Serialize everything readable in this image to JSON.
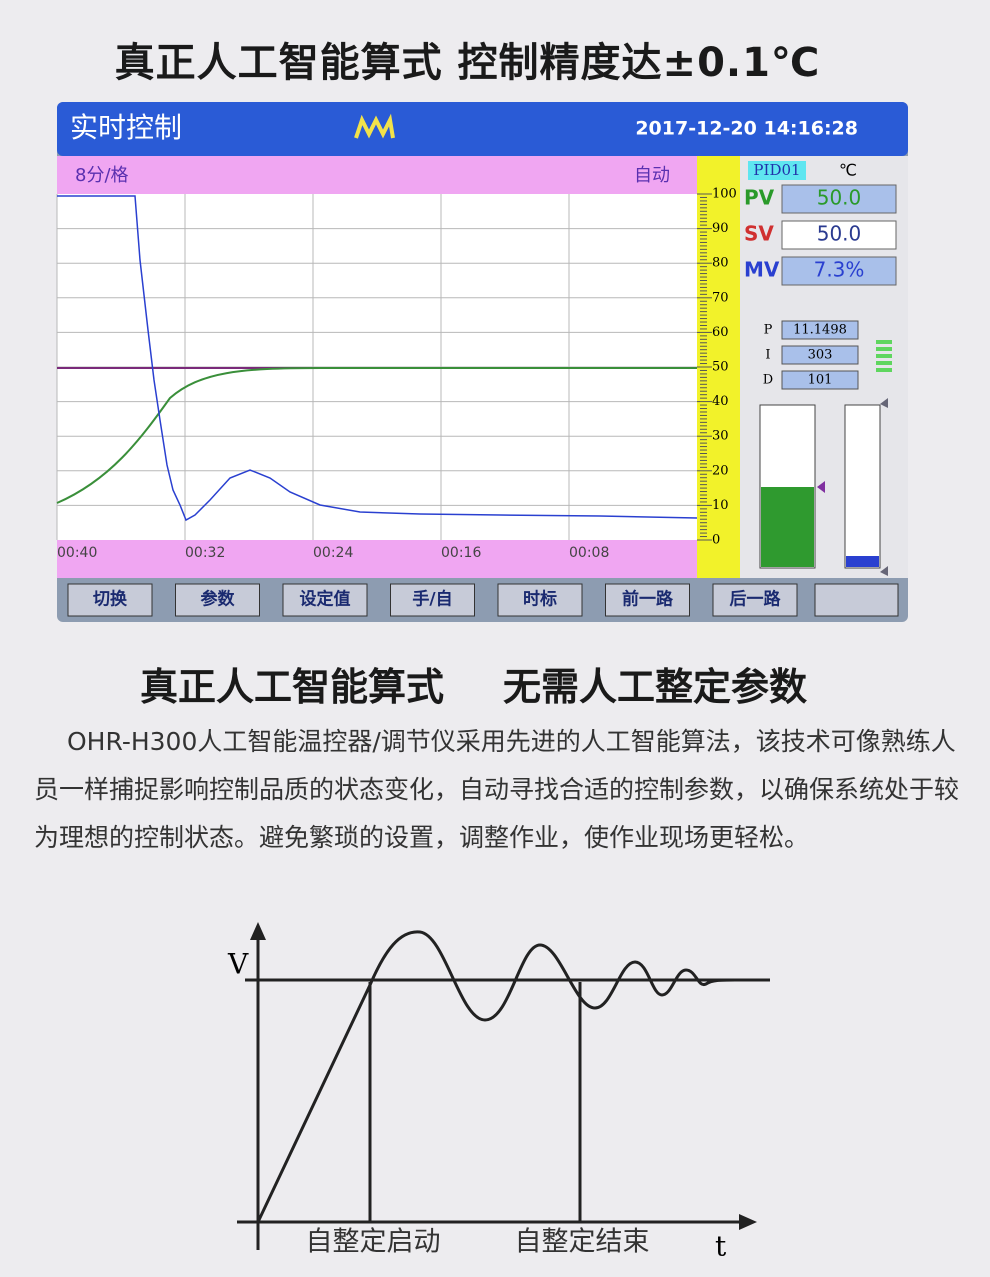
{
  "header": {
    "title": "真正人工智能算式 控制精度达±0.1℃"
  },
  "screen": {
    "title": "实时控制",
    "datetime": "2017-12-20 14:16:28",
    "scale": "8分/格",
    "mode": "自动",
    "scale_ticks": [
      "100",
      "90",
      "80",
      "70",
      "60",
      "50",
      "40",
      "30",
      "20",
      "10",
      "0"
    ],
    "time_labels": [
      "00:40",
      "00:32",
      "00:24",
      "00:16",
      "00:08"
    ],
    "loop": "PID01",
    "unit": "℃",
    "pv": {
      "label": "PV",
      "value": "50.0"
    },
    "sv": {
      "label": "SV",
      "value": "50.0"
    },
    "mv": {
      "label": "MV",
      "value": "7.3%"
    },
    "p": {
      "label": "P",
      "value": "11.1498"
    },
    "i": {
      "label": "I",
      "value": "303"
    },
    "d": {
      "label": "D",
      "value": "101"
    },
    "buttons": [
      "切换",
      "参数",
      "设定值",
      "手/自",
      "时标",
      "前一路",
      "后一路"
    ]
  },
  "section": {
    "title": "真正人工智能算式",
    "subtitle": "无需人工整定参数",
    "paragraph": "OHR-H300人工智能温控器/调节仪采用先进的人工智能算法，该技术可像熟练人员一样捕捉影响控制品质的状态变化，自动寻找合适的控制参数，以确保系统处于较为理想的控制状态。避免繁琐的设置，调整作业，使作业现场更轻松。"
  },
  "diagram": {
    "y_label": "V",
    "x_label": "t",
    "start": "自整定启动",
    "end": "自整定结束"
  }
}
